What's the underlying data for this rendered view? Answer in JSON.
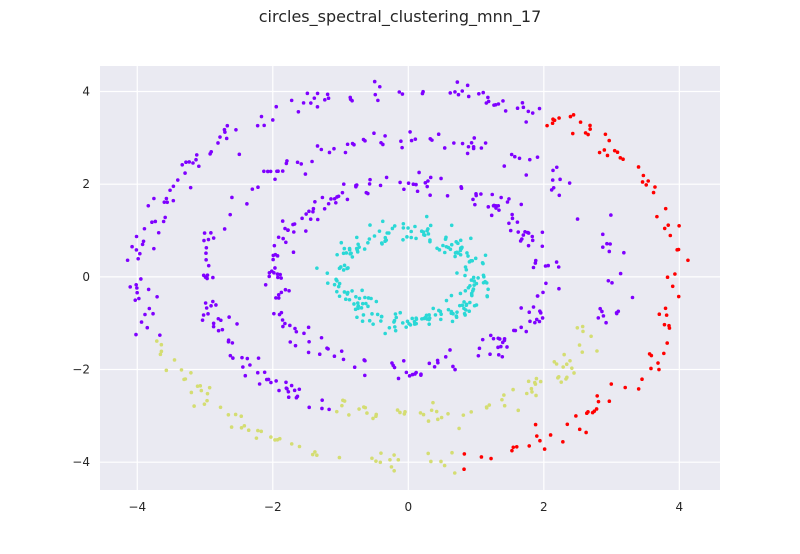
{
  "chart_data": {
    "type": "scatter",
    "title": "circles_spectral_clustering_mnn_17",
    "xlabel": "",
    "ylabel": "",
    "xlim": [
      -4.55,
      4.6
    ],
    "ylim": [
      -4.6,
      4.55
    ],
    "xticks": [
      -4,
      -2,
      0,
      2,
      4
    ],
    "yticks": [
      -4,
      -2,
      0,
      2,
      4
    ],
    "xtick_labels": [
      "−4",
      "−2",
      "0",
      "2",
      "4"
    ],
    "ytick_labels": [
      "−4",
      "−2",
      "0",
      "2",
      "4"
    ],
    "grid": true,
    "background": "#eaeaf2",
    "legend": "none",
    "cluster_colors": [
      "#2ad8d6",
      "#7f00ff",
      "#d4dd72",
      "#ff0000"
    ],
    "generator": {
      "description": "points sampled from four concentric rings with radial noise",
      "rings": [
        {
          "cluster": 0,
          "radius": 1.0,
          "noise": 0.12,
          "n": 220,
          "angle_range": [
            0,
            360
          ]
        },
        {
          "cluster": 1,
          "radius": 2.0,
          "noise": 0.12,
          "n": 200,
          "angle_range": [
            0,
            360
          ]
        },
        {
          "cluster": 1,
          "radius": 3.0,
          "noise": 0.12,
          "n": 150,
          "angle_range": [
            -20,
            250
          ]
        },
        {
          "cluster": 2,
          "radius": 3.0,
          "noise": 0.12,
          "n": 65,
          "angle_range": [
            250,
            340
          ]
        },
        {
          "cluster": 1,
          "radius": 4.0,
          "noise": 0.12,
          "n": 110,
          "angle_range": [
            60,
            200
          ]
        },
        {
          "cluster": 2,
          "radius": 4.0,
          "noise": 0.12,
          "n": 55,
          "angle_range": [
            200,
            280
          ]
        },
        {
          "cluster": 3,
          "radius": 4.0,
          "noise": 0.12,
          "n": 85,
          "angle_range": [
            280,
            420
          ]
        }
      ]
    }
  }
}
